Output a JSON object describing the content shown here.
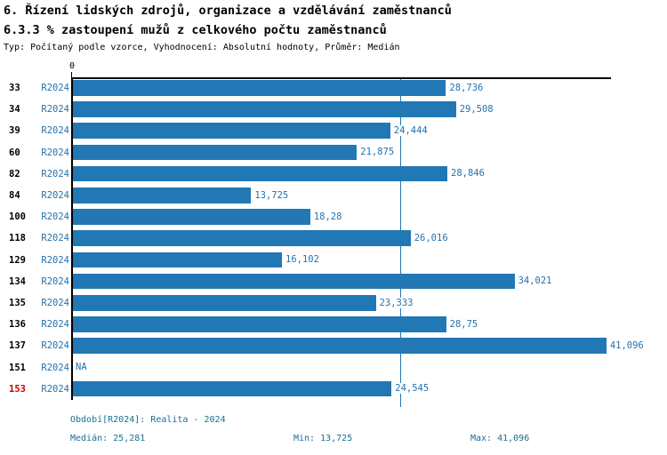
{
  "header": {
    "title_line1": "6. Řízení lidských zdrojů, organizace a vzdělávání zaměstnanců",
    "title_line2": "6.3.3 % zastoupení mužů z celkového počtu zaměstnanců",
    "meta_line": "Typ: Počítaný podle vzorce, Vyhodnocení: Absolutní hodnoty, Průměr: Medián"
  },
  "colors": {
    "bar": "#2277b5",
    "blue_text": "#2472ad",
    "footer_text": "#186f92",
    "highlight_row": "#cc0000",
    "axis": "#000000"
  },
  "axis": {
    "zero_label": "0"
  },
  "chart_data": {
    "type": "bar",
    "orientation": "horizontal",
    "title": "6.3.3 % zastoupení mužů z celkového počtu zaměstnanců",
    "series_label": "R2024",
    "xlim": [
      0,
      41.52
    ],
    "grid": false,
    "median_value": 25.281,
    "median_display": "25,281",
    "categories": [
      "33",
      "34",
      "39",
      "60",
      "82",
      "84",
      "100",
      "118",
      "129",
      "134",
      "135",
      "136",
      "137",
      "151",
      "153"
    ],
    "rows": [
      {
        "id": "33",
        "period": "R2024",
        "value": 28.736,
        "label": "28,736",
        "highlight": false
      },
      {
        "id": "34",
        "period": "R2024",
        "value": 29.508,
        "label": "29,508",
        "highlight": false
      },
      {
        "id": "39",
        "period": "R2024",
        "value": 24.444,
        "label": "24,444",
        "highlight": false
      },
      {
        "id": "60",
        "period": "R2024",
        "value": 21.875,
        "label": "21,875",
        "highlight": false
      },
      {
        "id": "82",
        "period": "R2024",
        "value": 28.846,
        "label": "28,846",
        "highlight": false
      },
      {
        "id": "84",
        "period": "R2024",
        "value": 13.725,
        "label": "13,725",
        "highlight": false
      },
      {
        "id": "100",
        "period": "R2024",
        "value": 18.28,
        "label": "18,28",
        "highlight": false
      },
      {
        "id": "118",
        "period": "R2024",
        "value": 26.016,
        "label": "26,016",
        "highlight": false
      },
      {
        "id": "129",
        "period": "R2024",
        "value": 16.102,
        "label": "16,102",
        "highlight": false
      },
      {
        "id": "134",
        "period": "R2024",
        "value": 34.021,
        "label": "34,021",
        "highlight": false
      },
      {
        "id": "135",
        "period": "R2024",
        "value": 23.333,
        "label": "23,333",
        "highlight": false
      },
      {
        "id": "136",
        "period": "R2024",
        "value": 28.75,
        "label": "28,75",
        "highlight": false
      },
      {
        "id": "137",
        "period": "R2024",
        "value": 41.096,
        "label": "41,096",
        "highlight": false
      },
      {
        "id": "151",
        "period": "R2024",
        "value": null,
        "label": "NA",
        "highlight": false
      },
      {
        "id": "153",
        "period": "R2024",
        "value": 24.545,
        "label": "24,545",
        "highlight": true
      }
    ]
  },
  "footer": {
    "period_line": "Období[R2024]: Realita - 2024",
    "median_label": "Medián: 25,281",
    "min_label": "Min: 13,725",
    "max_label": "Max: 41,096"
  }
}
